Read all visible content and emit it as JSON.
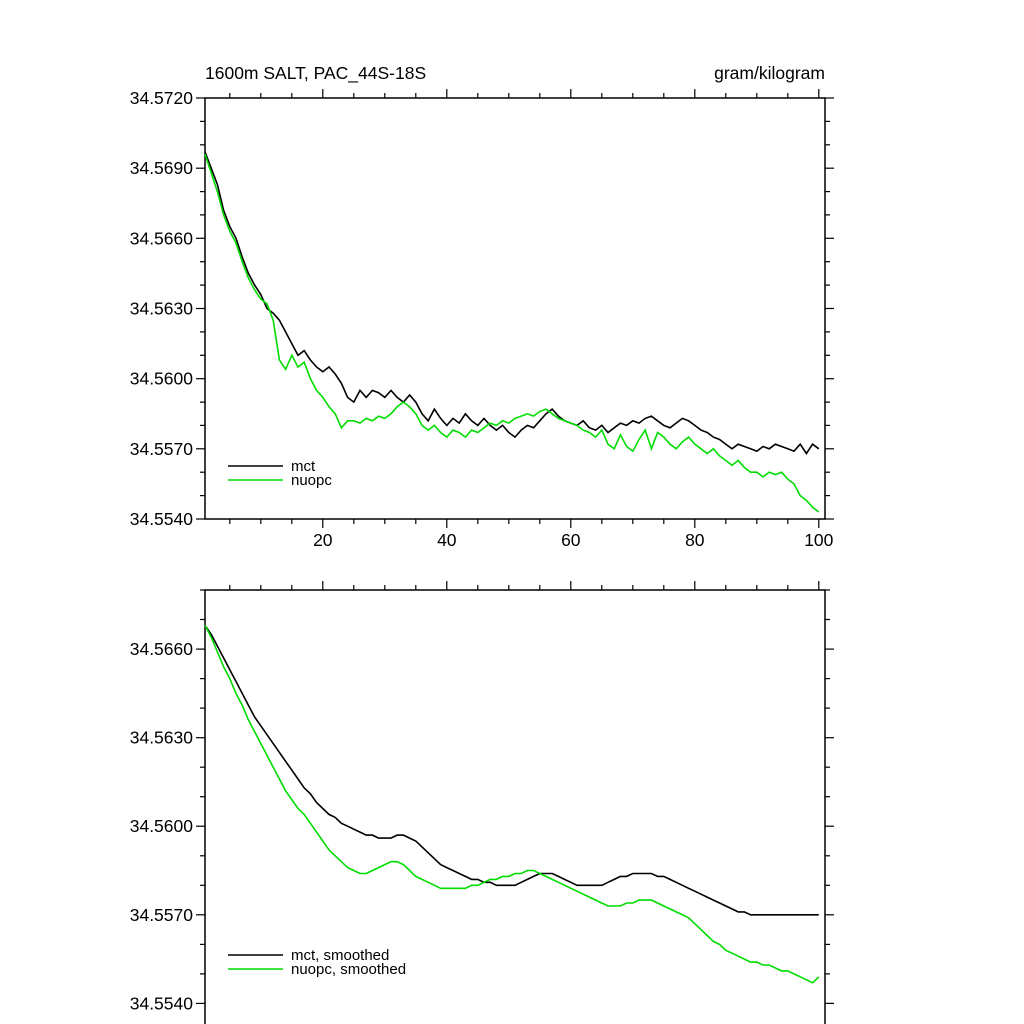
{
  "page": {
    "background": "#ffffff",
    "text_color": "#000000"
  },
  "chart_data": [
    {
      "type": "line",
      "title_left": "1600m SALT, PAC_44S-18S",
      "title_right": "gram/kilogram",
      "xlim": [
        1,
        101
      ],
      "ylim": [
        34.554,
        34.572
      ],
      "xticks": [
        20,
        40,
        60,
        80,
        100
      ],
      "xtick_labels": [
        "20",
        "40",
        "60",
        "80",
        "100"
      ],
      "x_minor_step": 5,
      "yticks": [
        34.572,
        34.569,
        34.566,
        34.563,
        34.56,
        34.557,
        34.554
      ],
      "ytick_labels": [
        "34.5720",
        "34.5690",
        "34.5660",
        "34.5630",
        "34.5600",
        "34.5570",
        "34.5540"
      ],
      "y_minor_step": 0.001,
      "grid": false,
      "legend_position": "bottom-left-inside",
      "x": [
        1,
        2,
        3,
        4,
        5,
        6,
        7,
        8,
        9,
        10,
        11,
        12,
        13,
        14,
        15,
        16,
        17,
        18,
        19,
        20,
        21,
        22,
        23,
        24,
        25,
        26,
        27,
        28,
        29,
        30,
        31,
        32,
        33,
        34,
        35,
        36,
        37,
        38,
        39,
        40,
        41,
        42,
        43,
        44,
        45,
        46,
        47,
        48,
        49,
        50,
        51,
        52,
        53,
        54,
        55,
        56,
        57,
        58,
        59,
        60,
        61,
        62,
        63,
        64,
        65,
        66,
        67,
        68,
        69,
        70,
        71,
        72,
        73,
        74,
        75,
        76,
        77,
        78,
        79,
        80,
        81,
        82,
        83,
        84,
        85,
        86,
        87,
        88,
        89,
        90,
        91,
        92,
        93,
        94,
        95,
        96,
        97,
        98,
        99,
        100
      ],
      "series": [
        {
          "name": "mct",
          "color": "#000000",
          "values": [
            34.5697,
            34.569,
            34.5683,
            34.5672,
            34.5665,
            34.566,
            34.5652,
            34.5645,
            34.564,
            34.5636,
            34.563,
            34.5628,
            34.5625,
            34.562,
            34.5615,
            34.561,
            34.5612,
            34.5608,
            34.5605,
            34.5603,
            34.5605,
            34.5602,
            34.5598,
            34.5592,
            34.559,
            34.5595,
            34.5592,
            34.5595,
            34.5594,
            34.5592,
            34.5595,
            34.5592,
            34.559,
            34.5593,
            34.559,
            34.5585,
            34.5582,
            34.5587,
            34.5583,
            34.558,
            34.5583,
            34.5581,
            34.5585,
            34.5582,
            34.558,
            34.5583,
            34.558,
            34.5578,
            34.558,
            34.5577,
            34.5575,
            34.5578,
            34.558,
            34.5579,
            34.5582,
            34.5585,
            34.5587,
            34.5584,
            34.5582,
            34.5581,
            34.558,
            34.5582,
            34.5579,
            34.5578,
            34.558,
            34.5577,
            34.5579,
            34.5581,
            34.558,
            34.5582,
            34.5581,
            34.5583,
            34.5584,
            34.5582,
            34.558,
            34.5579,
            34.5581,
            34.5583,
            34.5582,
            34.558,
            34.5578,
            34.5577,
            34.5575,
            34.5574,
            34.5572,
            34.557,
            34.5572,
            34.5571,
            34.557,
            34.5569,
            34.5571,
            34.557,
            34.5572,
            34.5571,
            34.557,
            34.5569,
            34.5572,
            34.5568,
            34.5572,
            34.557
          ]
        },
        {
          "name": "nuopc",
          "color": "#00dd00",
          "values": [
            34.5696,
            34.5688,
            34.568,
            34.567,
            34.5663,
            34.5658,
            34.565,
            34.5643,
            34.5638,
            34.5634,
            34.5632,
            34.5625,
            34.5608,
            34.5604,
            34.561,
            34.5605,
            34.5607,
            34.56,
            34.5595,
            34.5592,
            34.5588,
            34.5585,
            34.5579,
            34.5582,
            34.5582,
            34.5581,
            34.5583,
            34.5582,
            34.5584,
            34.5583,
            34.5585,
            34.5588,
            34.559,
            34.5588,
            34.5585,
            34.558,
            34.5578,
            34.558,
            34.5577,
            34.5575,
            34.5578,
            34.5577,
            34.5575,
            34.5578,
            34.5577,
            34.5579,
            34.5581,
            34.558,
            34.5582,
            34.5581,
            34.5583,
            34.5584,
            34.5585,
            34.5584,
            34.5586,
            34.5587,
            34.5585,
            34.5583,
            34.5582,
            34.5581,
            34.558,
            34.5578,
            34.5577,
            34.5575,
            34.5578,
            34.5572,
            34.557,
            34.5576,
            34.5571,
            34.5569,
            34.5574,
            34.5578,
            34.557,
            34.5577,
            34.5575,
            34.5572,
            34.557,
            34.5573,
            34.5575,
            34.5572,
            34.557,
            34.5568,
            34.557,
            34.5567,
            34.5565,
            34.5563,
            34.5565,
            34.5562,
            34.556,
            34.556,
            34.5558,
            34.556,
            34.5559,
            34.556,
            34.5557,
            34.5555,
            34.555,
            34.5548,
            34.5545,
            34.5543
          ]
        }
      ]
    },
    {
      "type": "line",
      "title_left": "",
      "title_right": "",
      "xlim": [
        1,
        101
      ],
      "ylim": [
        34.5531,
        34.568
      ],
      "xticks": [
        20,
        40,
        60,
        80,
        100
      ],
      "xtick_labels": [],
      "x_minor_step": 5,
      "yticks": [
        34.566,
        34.563,
        34.56,
        34.557,
        34.554
      ],
      "ytick_labels": [
        "34.5660",
        "34.5630",
        "34.5600",
        "34.5570",
        "34.5540"
      ],
      "y_minor_step": 0.001,
      "grid": false,
      "legend_position": "bottom-left-inside",
      "x": [
        1,
        2,
        3,
        4,
        5,
        6,
        7,
        8,
        9,
        10,
        11,
        12,
        13,
        14,
        15,
        16,
        17,
        18,
        19,
        20,
        21,
        22,
        23,
        24,
        25,
        26,
        27,
        28,
        29,
        30,
        31,
        32,
        33,
        34,
        35,
        36,
        37,
        38,
        39,
        40,
        41,
        42,
        43,
        44,
        45,
        46,
        47,
        48,
        49,
        50,
        51,
        52,
        53,
        54,
        55,
        56,
        57,
        58,
        59,
        60,
        61,
        62,
        63,
        64,
        65,
        66,
        67,
        68,
        69,
        70,
        71,
        72,
        73,
        74,
        75,
        76,
        77,
        78,
        79,
        80,
        81,
        82,
        83,
        84,
        85,
        86,
        87,
        88,
        89,
        90,
        91,
        92,
        93,
        94,
        95,
        96,
        97,
        98,
        99,
        100
      ],
      "series": [
        {
          "name": "mct, smoothed",
          "color": "#000000",
          "values": [
            34.5668,
            34.5665,
            34.5661,
            34.5657,
            34.5653,
            34.5649,
            34.5645,
            34.5641,
            34.5637,
            34.5634,
            34.5631,
            34.5628,
            34.5625,
            34.5622,
            34.5619,
            34.5616,
            34.5613,
            34.5611,
            34.5608,
            34.5606,
            34.5604,
            34.5603,
            34.5601,
            34.56,
            34.5599,
            34.5598,
            34.5597,
            34.5597,
            34.5596,
            34.5596,
            34.5596,
            34.5597,
            34.5597,
            34.5596,
            34.5595,
            34.5593,
            34.5591,
            34.5589,
            34.5587,
            34.5586,
            34.5585,
            34.5584,
            34.5583,
            34.5582,
            34.5582,
            34.5581,
            34.5581,
            34.558,
            34.558,
            34.558,
            34.558,
            34.5581,
            34.5582,
            34.5583,
            34.5584,
            34.5584,
            34.5584,
            34.5583,
            34.5582,
            34.5581,
            34.558,
            34.558,
            34.558,
            34.558,
            34.558,
            34.5581,
            34.5582,
            34.5583,
            34.5583,
            34.5584,
            34.5584,
            34.5584,
            34.5584,
            34.5583,
            34.5583,
            34.5582,
            34.5581,
            34.558,
            34.5579,
            34.5578,
            34.5577,
            34.5576,
            34.5575,
            34.5574,
            34.5573,
            34.5572,
            34.5571,
            34.5571,
            34.557,
            34.557,
            34.557,
            34.557,
            34.557,
            34.557,
            34.557,
            34.557,
            34.557,
            34.557,
            34.557,
            34.557
          ]
        },
        {
          "name": "nuopc, smoothed",
          "color": "#00dd00",
          "values": [
            34.5668,
            34.5664,
            34.5659,
            34.5654,
            34.565,
            34.5645,
            34.5641,
            34.5636,
            34.5632,
            34.5628,
            34.5624,
            34.562,
            34.5616,
            34.5612,
            34.5609,
            34.5606,
            34.5604,
            34.5601,
            34.5598,
            34.5595,
            34.5592,
            34.559,
            34.5588,
            34.5586,
            34.5585,
            34.5584,
            34.5584,
            34.5585,
            34.5586,
            34.5587,
            34.5588,
            34.5588,
            34.5587,
            34.5585,
            34.5583,
            34.5582,
            34.5581,
            34.558,
            34.5579,
            34.5579,
            34.5579,
            34.5579,
            34.5579,
            34.558,
            34.558,
            34.5581,
            34.5582,
            34.5582,
            34.5583,
            34.5583,
            34.5584,
            34.5584,
            34.5585,
            34.5585,
            34.5584,
            34.5583,
            34.5582,
            34.5581,
            34.558,
            34.5579,
            34.5578,
            34.5577,
            34.5576,
            34.5575,
            34.5574,
            34.5573,
            34.5573,
            34.5573,
            34.5574,
            34.5574,
            34.5575,
            34.5575,
            34.5575,
            34.5574,
            34.5573,
            34.5572,
            34.5571,
            34.557,
            34.5569,
            34.5567,
            34.5565,
            34.5563,
            34.5561,
            34.556,
            34.5558,
            34.5557,
            34.5556,
            34.5555,
            34.5554,
            34.5554,
            34.5553,
            34.5553,
            34.5552,
            34.5551,
            34.5551,
            34.555,
            34.5549,
            34.5548,
            34.5547,
            34.5549
          ]
        }
      ]
    }
  ]
}
